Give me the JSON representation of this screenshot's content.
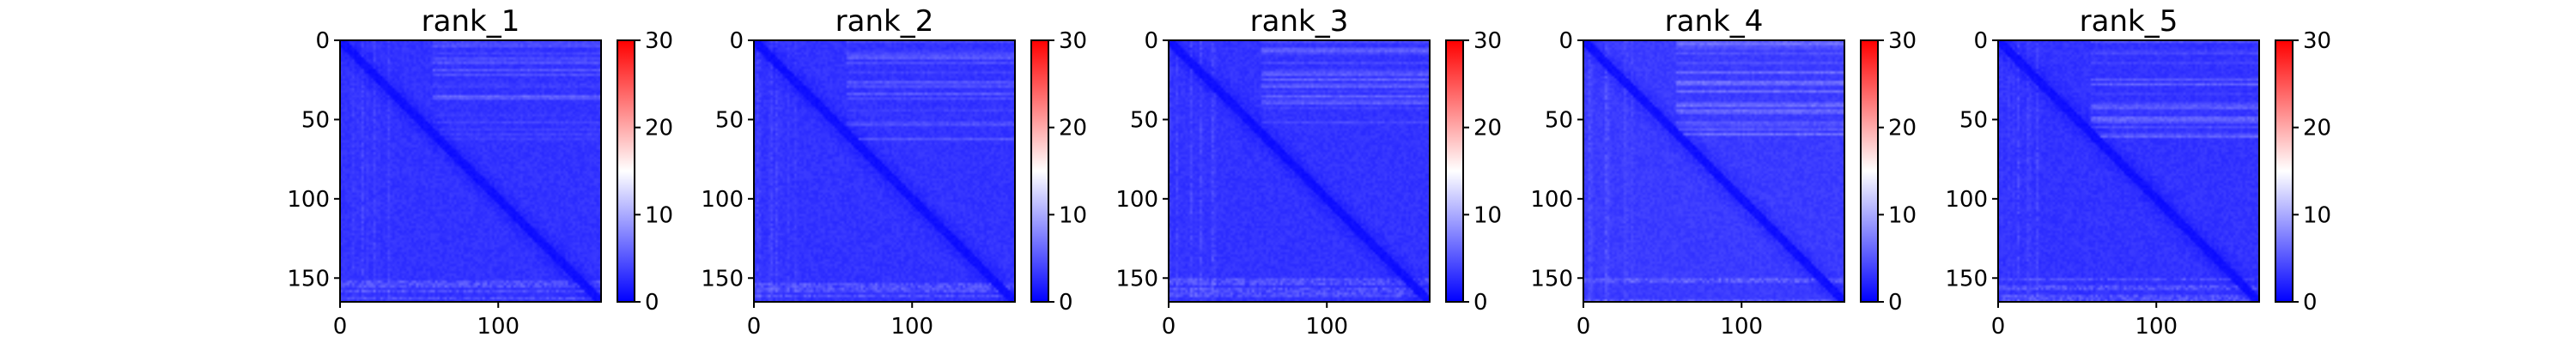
{
  "chart_data": [
    {
      "type": "heatmap",
      "title": "rank_1",
      "matrix_size": 165,
      "x_ticks": [
        0,
        100
      ],
      "y_ticks": [
        0,
        50,
        100,
        150
      ],
      "colorbar": {
        "min": 0,
        "max": 30,
        "ticks": [
          0,
          10,
          20,
          30
        ],
        "colormap": [
          "#0000ff",
          "#ffffff",
          "#ff0000"
        ]
      },
      "value_range_observed": [
        0,
        10
      ],
      "description_values": {
        "diagonal": 0.5,
        "background": 3,
        "bright_bands": 8
      }
    },
    {
      "type": "heatmap",
      "title": "rank_2",
      "matrix_size": 165,
      "x_ticks": [
        0,
        100
      ],
      "y_ticks": [
        0,
        50,
        100,
        150
      ],
      "colorbar": {
        "min": 0,
        "max": 30,
        "ticks": [
          0,
          10,
          20,
          30
        ],
        "colormap": [
          "#0000ff",
          "#ffffff",
          "#ff0000"
        ]
      },
      "value_range_observed": [
        0,
        10
      ],
      "description_values": {
        "diagonal": 0.5,
        "background": 3,
        "bright_bands": 8
      }
    },
    {
      "type": "heatmap",
      "title": "rank_3",
      "matrix_size": 165,
      "x_ticks": [
        0,
        100
      ],
      "y_ticks": [
        0,
        50,
        100,
        150
      ],
      "colorbar": {
        "min": 0,
        "max": 30,
        "ticks": [
          0,
          10,
          20,
          30
        ],
        "colormap": [
          "#0000ff",
          "#ffffff",
          "#ff0000"
        ]
      },
      "value_range_observed": [
        0,
        10
      ],
      "description_values": {
        "diagonal": 0.5,
        "background": 3,
        "bright_bands": 8
      }
    },
    {
      "type": "heatmap",
      "title": "rank_4",
      "matrix_size": 165,
      "x_ticks": [
        0,
        100
      ],
      "y_ticks": [
        0,
        50,
        100,
        150
      ],
      "colorbar": {
        "min": 0,
        "max": 30,
        "ticks": [
          0,
          10,
          20,
          30
        ],
        "colormap": [
          "#0000ff",
          "#ffffff",
          "#ff0000"
        ]
      },
      "value_range_observed": [
        0,
        11
      ],
      "description_values": {
        "diagonal": 0.5,
        "background": 3.5,
        "bright_bands": 9
      }
    },
    {
      "type": "heatmap",
      "title": "rank_5",
      "matrix_size": 165,
      "x_ticks": [
        0,
        100
      ],
      "y_ticks": [
        0,
        50,
        100,
        150
      ],
      "colorbar": {
        "min": 0,
        "max": 30,
        "ticks": [
          0,
          10,
          20,
          30
        ],
        "colormap": [
          "#0000ff",
          "#ffffff",
          "#ff0000"
        ]
      },
      "value_range_observed": [
        0,
        10
      ],
      "description_values": {
        "diagonal": 0.5,
        "background": 3,
        "bright_bands": 8
      }
    }
  ]
}
